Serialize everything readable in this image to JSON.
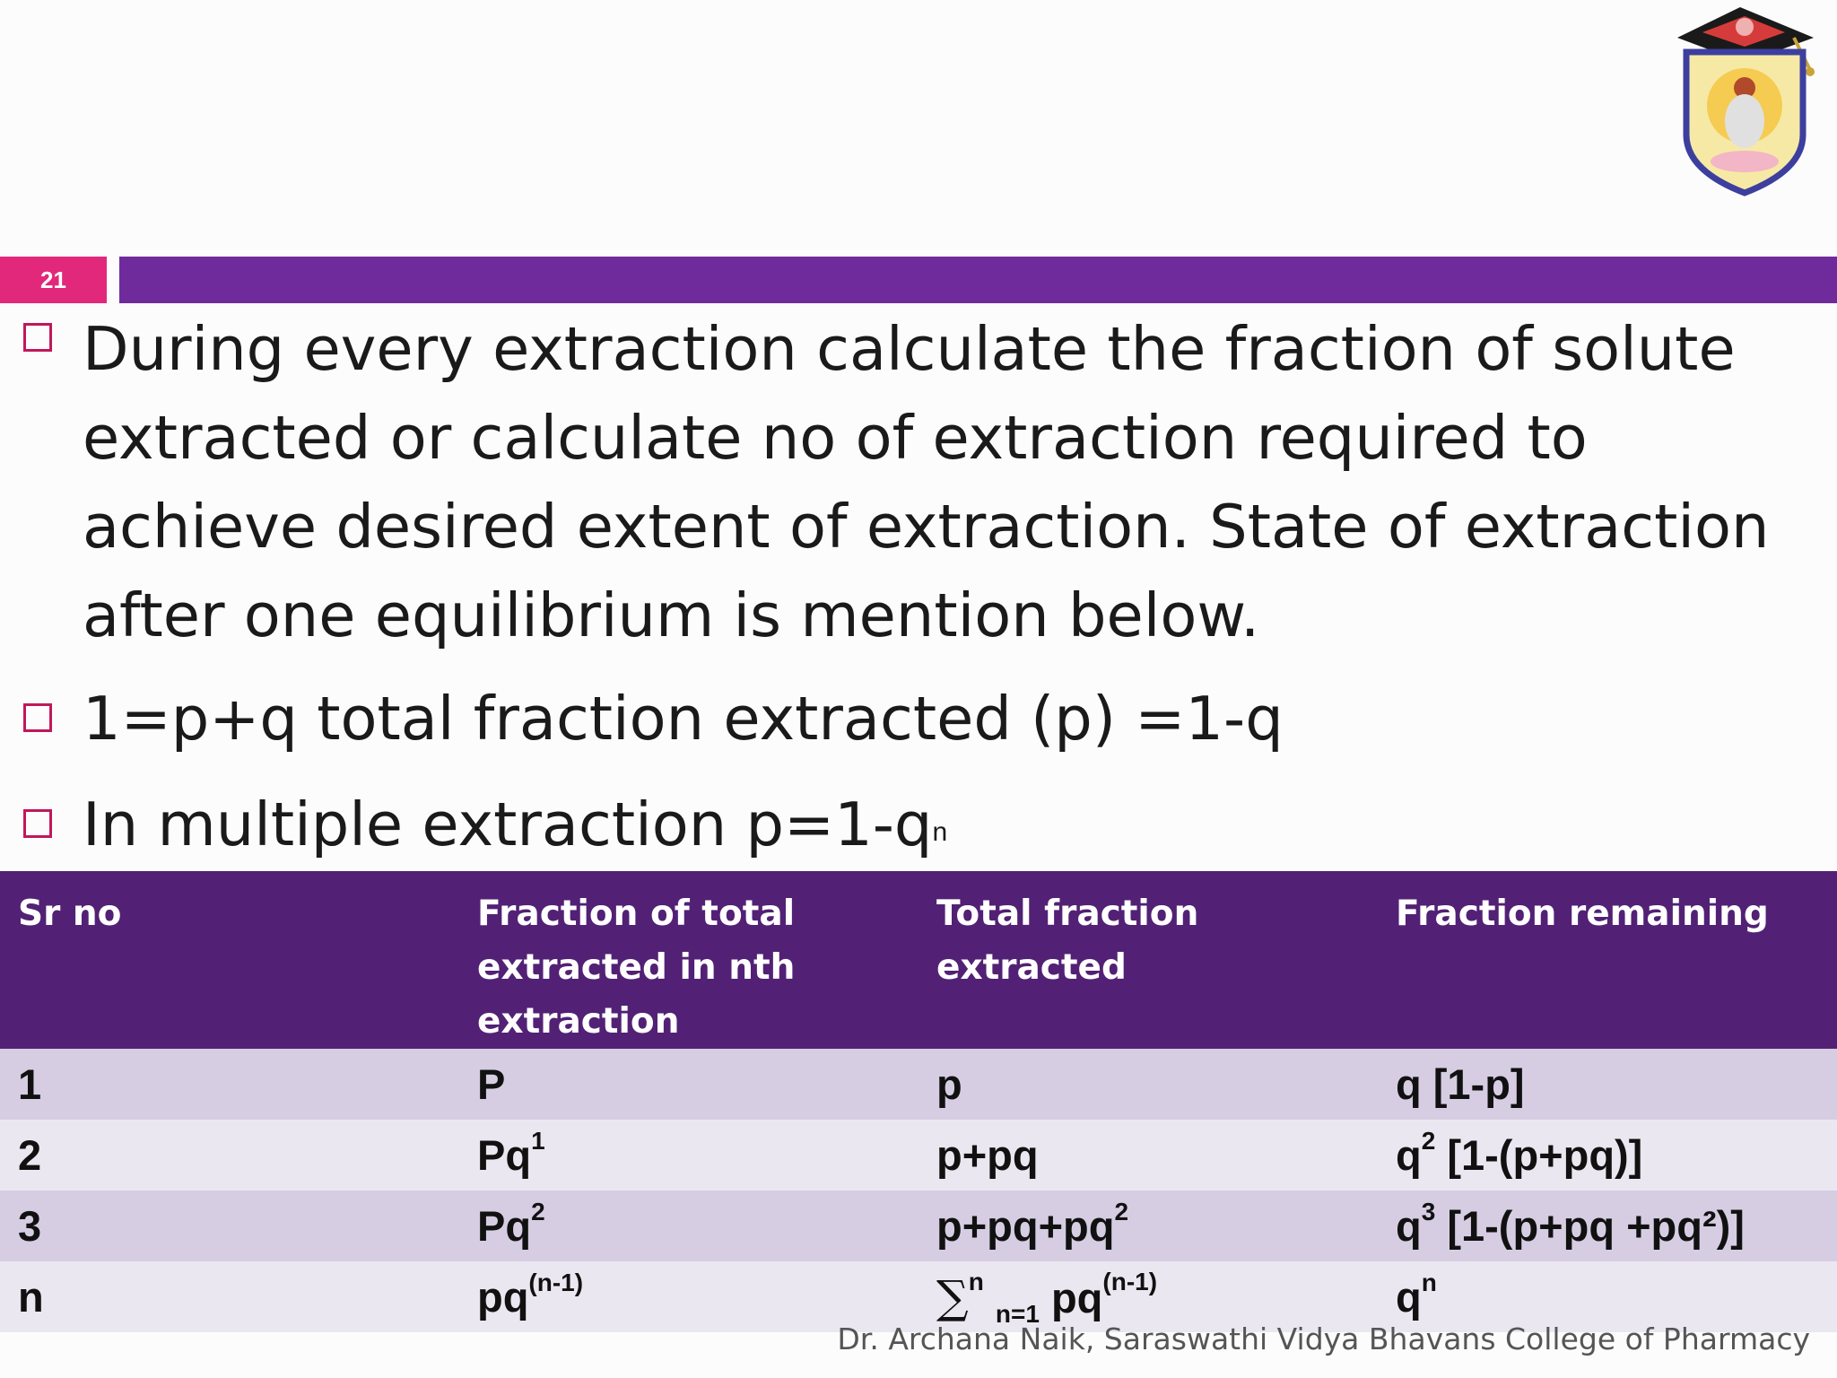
{
  "slide_number": "21",
  "bullets": [
    "During every extraction calculate the fraction of solute extracted or calculate no of extraction required to achieve desired extent of extraction. State of extraction after one equilibrium is mention below.",
    "1=p+q  total fraction extracted (p) =1-q",
    "In multiple extraction p=1-q",
    "n"
  ],
  "table": {
    "headers": [
      "Sr no",
      "Fraction of total extracted in nth extraction",
      "Total fraction extracted",
      "Fraction remaining"
    ],
    "rows": [
      {
        "sr": "1",
        "fraction": "P",
        "fraction_sup": "",
        "total": "p",
        "total_sup": "",
        "remaining": "q [1-p]",
        "remaining_sup": "",
        "remaining_tail": ""
      },
      {
        "sr": "2",
        "fraction": "Pq",
        "fraction_sup": "1",
        "total": "p+pq",
        "total_sup": "",
        "remaining": "q",
        "remaining_sup": "2",
        "remaining_tail": " [1-(p+pq)]"
      },
      {
        "sr": "3",
        "fraction": "Pq",
        "fraction_sup": "2",
        "total": "p+pq+pq",
        "total_sup": "2",
        "remaining": "q",
        "remaining_sup": "3",
        "remaining_tail": " [1-(p+pq +pq²)]"
      },
      {
        "sr": "n",
        "fraction": "pq",
        "fraction_sup": "(n-1)",
        "total_sigma": "∑",
        "total_sigma_sup": "n",
        "total_sigma_sub": "n=1",
        "total": "pq",
        "total_sup": "(n-1)",
        "remaining": "q",
        "remaining_sup": "n",
        "remaining_tail": ""
      }
    ]
  },
  "footer": "Dr. Archana Naik, Saraswathi Vidya Bhavans College of Pharmacy",
  "colors": {
    "accent_pink": "#e2287a",
    "title_bar_purple": "#6f2b9b",
    "table_header": "#522175",
    "row_odd": "#d6cde3",
    "row_even": "#ebe7f0"
  }
}
